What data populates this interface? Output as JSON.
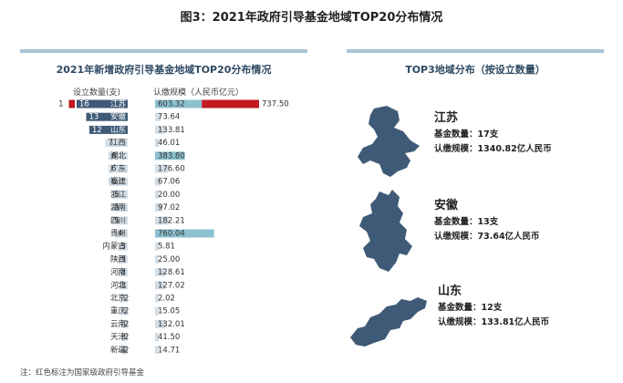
{
  "figure_title": "图3：2021年政府引导基金地域TOP20分布情况",
  "left_panel": {
    "title": "2021年新增政府引导基金地域TOP20分布情况",
    "col_count_label": "设立数量(支)",
    "col_scale_label": "认缴规模（人民币亿元）"
  },
  "right_panel": {
    "title": "TOP3地域分布（按设立数量）",
    "provinces": [
      {
        "name": "江苏",
        "count_text": "基金数量：17支",
        "scale_text": "认缴规模：1340.82亿人民币"
      },
      {
        "name": "安徽",
        "count_text": "基金数量：13支",
        "scale_text": "认缴规模：73.64亿人民币"
      },
      {
        "name": "山东",
        "count_text": "基金数量：12支",
        "scale_text": "认缴规模：133.81亿人民币"
      }
    ]
  },
  "note": "注：红色标注为国家级政府引导基金",
  "colors": {
    "dark": "#3f5a76",
    "light": "#d3dde6",
    "teal": "#8cc1d0",
    "red": "#c0191f"
  },
  "chart_data": {
    "type": "bar",
    "categories": [
      "江苏",
      "安徽",
      "山东",
      "江西",
      "湖北",
      "广东",
      "福建",
      "浙江",
      "湖南",
      "四川",
      "贵州",
      "内蒙古",
      "陕西",
      "河南",
      "河北",
      "北京",
      "重庆",
      "云南",
      "天津",
      "新疆"
    ],
    "series": [
      {
        "name": "设立数量(支)",
        "values": [
          16,
          13,
          12,
          7,
          6,
          6,
          6,
          5,
          5,
          5,
          4,
          3,
          3,
          3,
          3,
          2,
          2,
          2,
          2,
          2
        ]
      },
      {
        "name": "认缴规模（人民币亿元）",
        "values": [
          603.32,
          73.64,
          133.81,
          46.01,
          383.8,
          176.6,
          67.06,
          20.0,
          97.02,
          182.21,
          760.04,
          5.81,
          25.0,
          128.61,
          127.02,
          2.02,
          15.05,
          132.01,
          41.5,
          14.71
        ]
      }
    ],
    "national": {
      "category": "江苏",
      "count": 1,
      "scale": 737.5
    },
    "count_labels": [
      "16",
      "13",
      "12",
      "7",
      "6",
      "6",
      "6",
      "5",
      "5",
      "5",
      "4",
      "3",
      "3",
      "3",
      "3",
      "2",
      "2",
      "2",
      "2",
      "2"
    ],
    "scale_labels": [
      "603.32",
      "73.64",
      "133.81",
      "46.01",
      "383.80",
      "176.60",
      "67.06",
      "20.00",
      "97.02",
      "182.21",
      "760.04",
      "5.81",
      "25.00",
      "128.61",
      "127.02",
      "2.02",
      "15.05",
      "132.01",
      "41.50",
      "14.71"
    ],
    "national_count_label": "1",
    "national_scale_label": "737.50"
  }
}
